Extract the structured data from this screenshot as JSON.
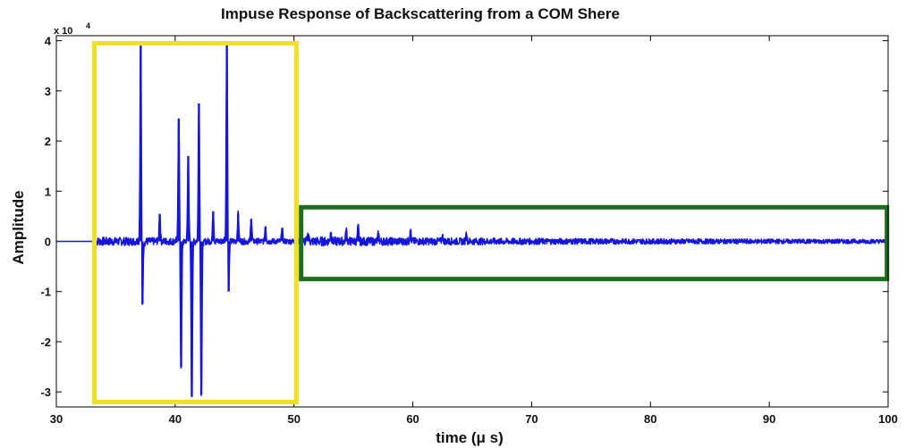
{
  "chart_data": {
    "type": "line",
    "title": "Impuse Response of Backscattering from a COM Shere",
    "xlabel": "time (μ s)",
    "ylabel": "Amplitude",
    "y_exponent_label": "x 10",
    "y_exponent_power": "4",
    "xlim": [
      30,
      100
    ],
    "ylim": [
      -3.3,
      4.1
    ],
    "xticks": [
      30,
      40,
      50,
      60,
      70,
      80,
      90,
      100
    ],
    "yticks": [
      -3,
      -2,
      -1,
      0,
      1,
      2,
      3,
      4
    ],
    "grid": false,
    "series": [
      {
        "color": "#1515e0",
        "peaks": [
          {
            "x": 33.2,
            "y": 0.12
          },
          {
            "x": 37.1,
            "y": 3.9
          },
          {
            "x": 37.25,
            "y": -1.25
          },
          {
            "x": 38.7,
            "y": 0.55
          },
          {
            "x": 40.3,
            "y": 2.45
          },
          {
            "x": 40.5,
            "y": -2.5
          },
          {
            "x": 41.1,
            "y": 1.7
          },
          {
            "x": 41.4,
            "y": -3.1
          },
          {
            "x": 42.0,
            "y": 2.75
          },
          {
            "x": 42.2,
            "y": -3.05
          },
          {
            "x": 43.2,
            "y": 0.6
          },
          {
            "x": 44.35,
            "y": 3.95
          },
          {
            "x": 44.5,
            "y": -1.0
          },
          {
            "x": 45.3,
            "y": 0.55
          },
          {
            "x": 46.4,
            "y": 0.45
          },
          {
            "x": 47.6,
            "y": 0.3
          },
          {
            "x": 49.0,
            "y": 0.25
          },
          {
            "x": 51.2,
            "y": 0.15
          },
          {
            "x": 53.1,
            "y": 0.18
          },
          {
            "x": 54.4,
            "y": 0.22
          },
          {
            "x": 55.4,
            "y": 0.28
          },
          {
            "x": 57.1,
            "y": 0.14
          },
          {
            "x": 59.8,
            "y": 0.22
          },
          {
            "x": 62.5,
            "y": 0.1
          },
          {
            "x": 64.5,
            "y": 0.15
          }
        ]
      }
    ],
    "highlight_boxes": [
      {
        "color": "#f0e020",
        "x0": 33.2,
        "x1": 50.2,
        "y0": -3.2,
        "y1": 3.95
      },
      {
        "color": "#1d6e1d",
        "x0": 50.6,
        "x1": 99.9,
        "y0": -0.75,
        "y1": 0.68
      }
    ]
  }
}
